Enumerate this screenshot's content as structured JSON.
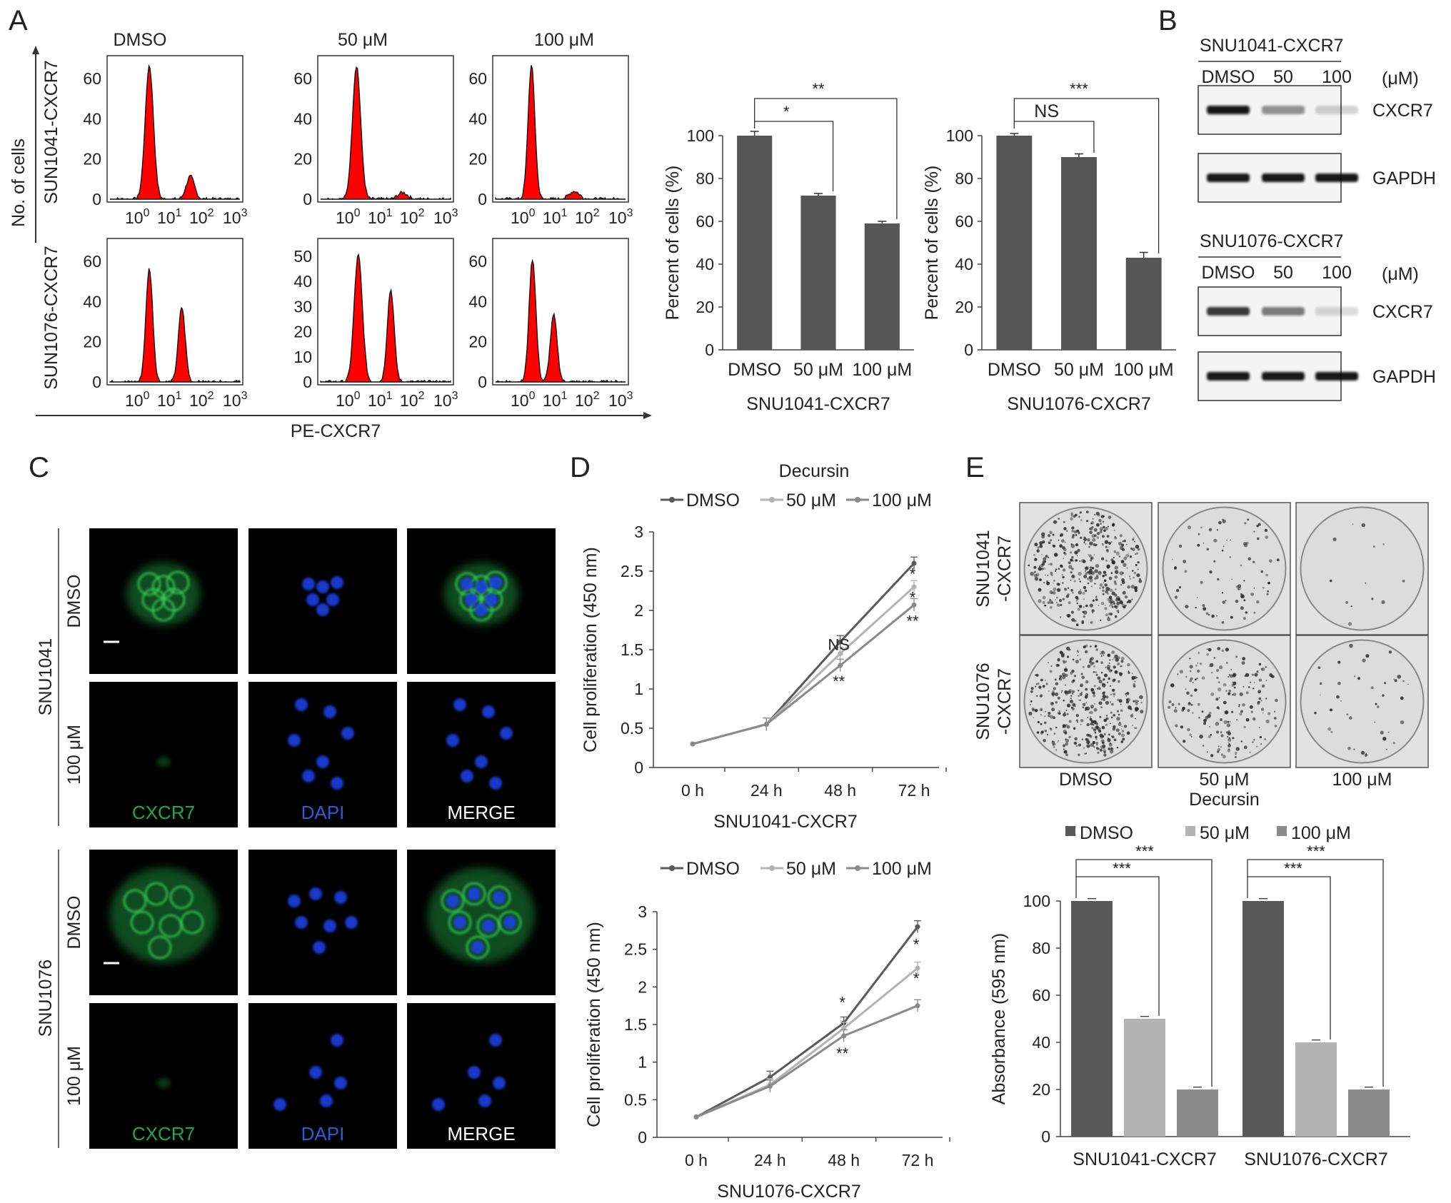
{
  "panels": {
    "a": "A",
    "b": "B",
    "c": "C",
    "d": "D",
    "e": "E"
  },
  "flow": {
    "col_titles": [
      "DMSO",
      "50 μM",
      "100 μM"
    ],
    "row_labels": [
      "SUN1041-CXCR7",
      "SUN1076-CXCR7"
    ],
    "y_axis_label": "No. of cells",
    "x_axis_label": "PE-CXCR7",
    "x_ticks": [
      "10",
      "10",
      "10",
      "10"
    ],
    "x_exps": [
      "0",
      "1",
      "2",
      "3"
    ],
    "y_ticks": [
      [
        [
          "0",
          "20",
          "40",
          "60"
        ],
        [
          "0",
          "20",
          "40",
          "60"
        ],
        [
          "0",
          "20",
          "40",
          "60"
        ]
      ],
      [
        [
          "0",
          "20",
          "40",
          "60"
        ],
        [
          "0",
          "10",
          "20",
          "30",
          "40",
          "50"
        ],
        [
          "0",
          "20",
          "40",
          "60"
        ]
      ]
    ],
    "color": "#ff0000"
  },
  "chart_data": [
    {
      "type": "bar",
      "id": "A-bar-1",
      "categories": [
        "DMSO",
        "50 μM",
        "100 μM"
      ],
      "values": [
        100,
        72,
        59
      ],
      "errors": [
        2,
        1,
        1
      ],
      "xlabel": "SNU1041-CXCR7",
      "ylabel": "Percent of cells (%)",
      "ylim": [
        0,
        100
      ],
      "yticks": [
        "0",
        "20",
        "40",
        "60",
        "80",
        "100"
      ],
      "significance": [
        {
          "label": "*",
          "from": 0,
          "to": 1
        },
        {
          "label": "**",
          "from": 0,
          "to": 2
        }
      ],
      "color": "#555555"
    },
    {
      "type": "bar",
      "id": "A-bar-2",
      "categories": [
        "DMSO",
        "50 μM",
        "100 μM"
      ],
      "values": [
        100,
        90,
        43
      ],
      "errors": [
        1,
        1.5,
        2.5
      ],
      "xlabel": "SNU1076-CXCR7",
      "ylabel": "Percent of cells (%)",
      "ylim": [
        0,
        100
      ],
      "yticks": [
        "0",
        "20",
        "40",
        "60",
        "80",
        "100"
      ],
      "significance": [
        {
          "label": "NS",
          "from": 0,
          "to": 1
        },
        {
          "label": "***",
          "from": 0,
          "to": 2
        }
      ],
      "color": "#555555"
    },
    {
      "type": "line",
      "id": "D-line-1",
      "x": [
        "0 h",
        "24 h",
        "48 h",
        "72 h"
      ],
      "series": [
        {
          "name": "DMSO",
          "values": [
            0.3,
            0.55,
            1.6,
            2.6
          ],
          "color": "#5a5a5a"
        },
        {
          "name": "50 μM",
          "values": [
            0.3,
            0.55,
            1.45,
            2.3
          ],
          "color": "#b3b3b3"
        },
        {
          "name": "100 μM",
          "values": [
            0.3,
            0.55,
            1.3,
            2.07
          ],
          "color": "#8a8a8a"
        }
      ],
      "title": "Decursin",
      "xlabel": "SNU1041-CXCR7",
      "ylabel": "Cell proliferation (450 nm)",
      "ylim": [
        0,
        3
      ],
      "yticks": [
        "0",
        "0.5",
        "1",
        "1.5",
        "2",
        "2.5",
        "3"
      ],
      "annotations": [
        {
          "x": "48 h",
          "y": 1.55,
          "label": "NS"
        },
        {
          "x": "48 h",
          "y": 1.08,
          "label": "**"
        },
        {
          "x": "72 h",
          "y": 2.45,
          "label": "*"
        },
        {
          "x": "72 h",
          "y": 2.15,
          "label": "*"
        },
        {
          "x": "72 h",
          "y": 1.85,
          "label": "**"
        }
      ]
    },
    {
      "type": "line",
      "id": "D-line-2",
      "x": [
        "0 h",
        "24 h",
        "48 h",
        "72 h"
      ],
      "series": [
        {
          "name": "DMSO",
          "values": [
            0.27,
            0.8,
            1.52,
            2.8
          ],
          "color": "#5a5a5a"
        },
        {
          "name": "50 μM",
          "values": [
            0.27,
            0.7,
            1.45,
            2.25
          ],
          "color": "#b3b3b3"
        },
        {
          "name": "100 μM",
          "values": [
            0.27,
            0.68,
            1.35,
            1.75
          ],
          "color": "#8a8a8a"
        }
      ],
      "xlabel": "SNU1076-CXCR7",
      "ylabel": "Cell proliferation (450 nm)",
      "ylim": [
        0,
        3
      ],
      "yticks": [
        "0",
        "0.5",
        "1",
        "1.5",
        "2",
        "2.5",
        "3"
      ],
      "annotations": [
        {
          "x": "48 h",
          "y": 1.78,
          "label": "*"
        },
        {
          "x": "48 h",
          "y": 1.1,
          "label": "**"
        },
        {
          "x": "72 h",
          "y": 2.55,
          "label": "*"
        },
        {
          "x": "72 h",
          "y": 2.1,
          "label": "*"
        }
      ]
    },
    {
      "type": "bar",
      "id": "E-bar",
      "groups": [
        "SNU1041-CXCR7",
        "SNU1076-CXCR7"
      ],
      "series": [
        {
          "name": "DMSO",
          "values": [
            100,
            100
          ],
          "color": "#595959"
        },
        {
          "name": "50 μM",
          "values": [
            50,
            40
          ],
          "color": "#b3b3b3"
        },
        {
          "name": "100 μM",
          "values": [
            20,
            20
          ],
          "color": "#8c8c8c"
        }
      ],
      "ylabel": "Absorbance (595 nm)",
      "ylim": [
        0,
        100
      ],
      "yticks": [
        "0",
        "20",
        "40",
        "60",
        "80",
        "100"
      ],
      "significance": [
        "***",
        "***",
        "***",
        "***"
      ]
    }
  ],
  "western": {
    "blots": [
      {
        "cell_line": "SNU1041-CXCR7",
        "lanes": [
          "DMSO",
          "50",
          "100"
        ],
        "unit": "(μM)",
        "bands": [
          {
            "name": "CXCR7",
            "intensity": [
              1.0,
              0.45,
              0.18
            ]
          },
          {
            "name": "GAPDH",
            "intensity": [
              1.0,
              1.0,
              1.0
            ]
          }
        ]
      },
      {
        "cell_line": "SNU1076-CXCR7",
        "lanes": [
          "DMSO",
          "50",
          "100"
        ],
        "unit": "(μM)",
        "bands": [
          {
            "name": "CXCR7",
            "intensity": [
              0.85,
              0.55,
              0.15
            ]
          },
          {
            "name": "GAPDH",
            "intensity": [
              1.0,
              1.0,
              1.0
            ]
          }
        ]
      }
    ]
  },
  "microscopy": {
    "group_labels": [
      "SNU1041",
      "SNU1076"
    ],
    "row_labels": [
      "DMSO",
      "100 μM"
    ],
    "channels": [
      {
        "name": "CXCR7",
        "color": "#1fa84a"
      },
      {
        "name": "DAPI",
        "color": "#2a5cd6"
      },
      {
        "name": "MERGE",
        "color": "#ffffff"
      }
    ]
  },
  "colony": {
    "row_labels": [
      "SNU1041\n-CXCR7",
      "SNU1076\n-CXCR7"
    ],
    "col_labels": [
      "DMSO",
      "50 μM",
      "100 μM"
    ],
    "treatment_label": "Decursin",
    "densities": [
      [
        1.0,
        0.2,
        0.03
      ],
      [
        1.0,
        0.45,
        0.1
      ]
    ]
  }
}
